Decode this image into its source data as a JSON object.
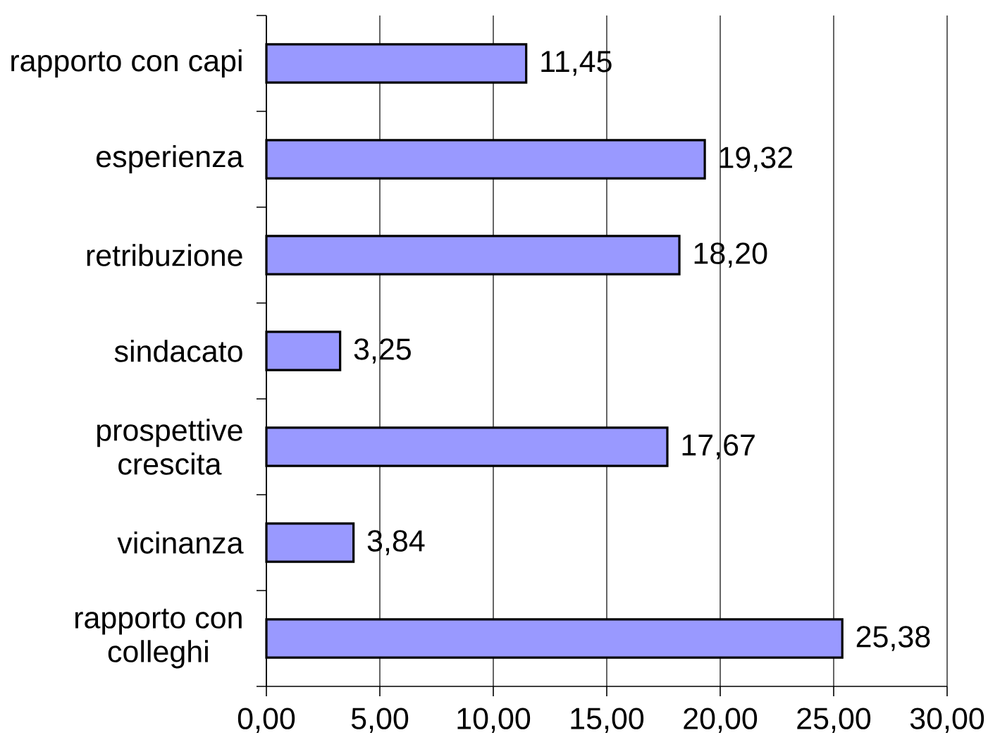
{
  "chart_data": {
    "type": "bar",
    "orientation": "horizontal",
    "categories": [
      "rapporto con capi",
      "esperienza",
      "retribuzione",
      "sindacato",
      "prospettive crescita",
      "vicinanza",
      "rapporto con colleghi"
    ],
    "values": [
      11.45,
      19.32,
      18.2,
      3.25,
      17.67,
      3.84,
      25.38
    ],
    "value_labels": [
      "11,45",
      "19,32",
      "18,20",
      "3,25",
      "17,67",
      "3,84",
      "25,38"
    ],
    "color": "#9999ff",
    "xlim": [
      0,
      30
    ],
    "xticks": [
      {
        "value": 0,
        "label": "0,00"
      },
      {
        "value": 5,
        "label": "5,00"
      },
      {
        "value": 10,
        "label": "10,00"
      },
      {
        "value": 15,
        "label": "15,00"
      },
      {
        "value": 20,
        "label": "20,00"
      },
      {
        "value": 25,
        "label": "25,00"
      },
      {
        "value": 30,
        "label": "30,00"
      }
    ],
    "grid": "x"
  }
}
